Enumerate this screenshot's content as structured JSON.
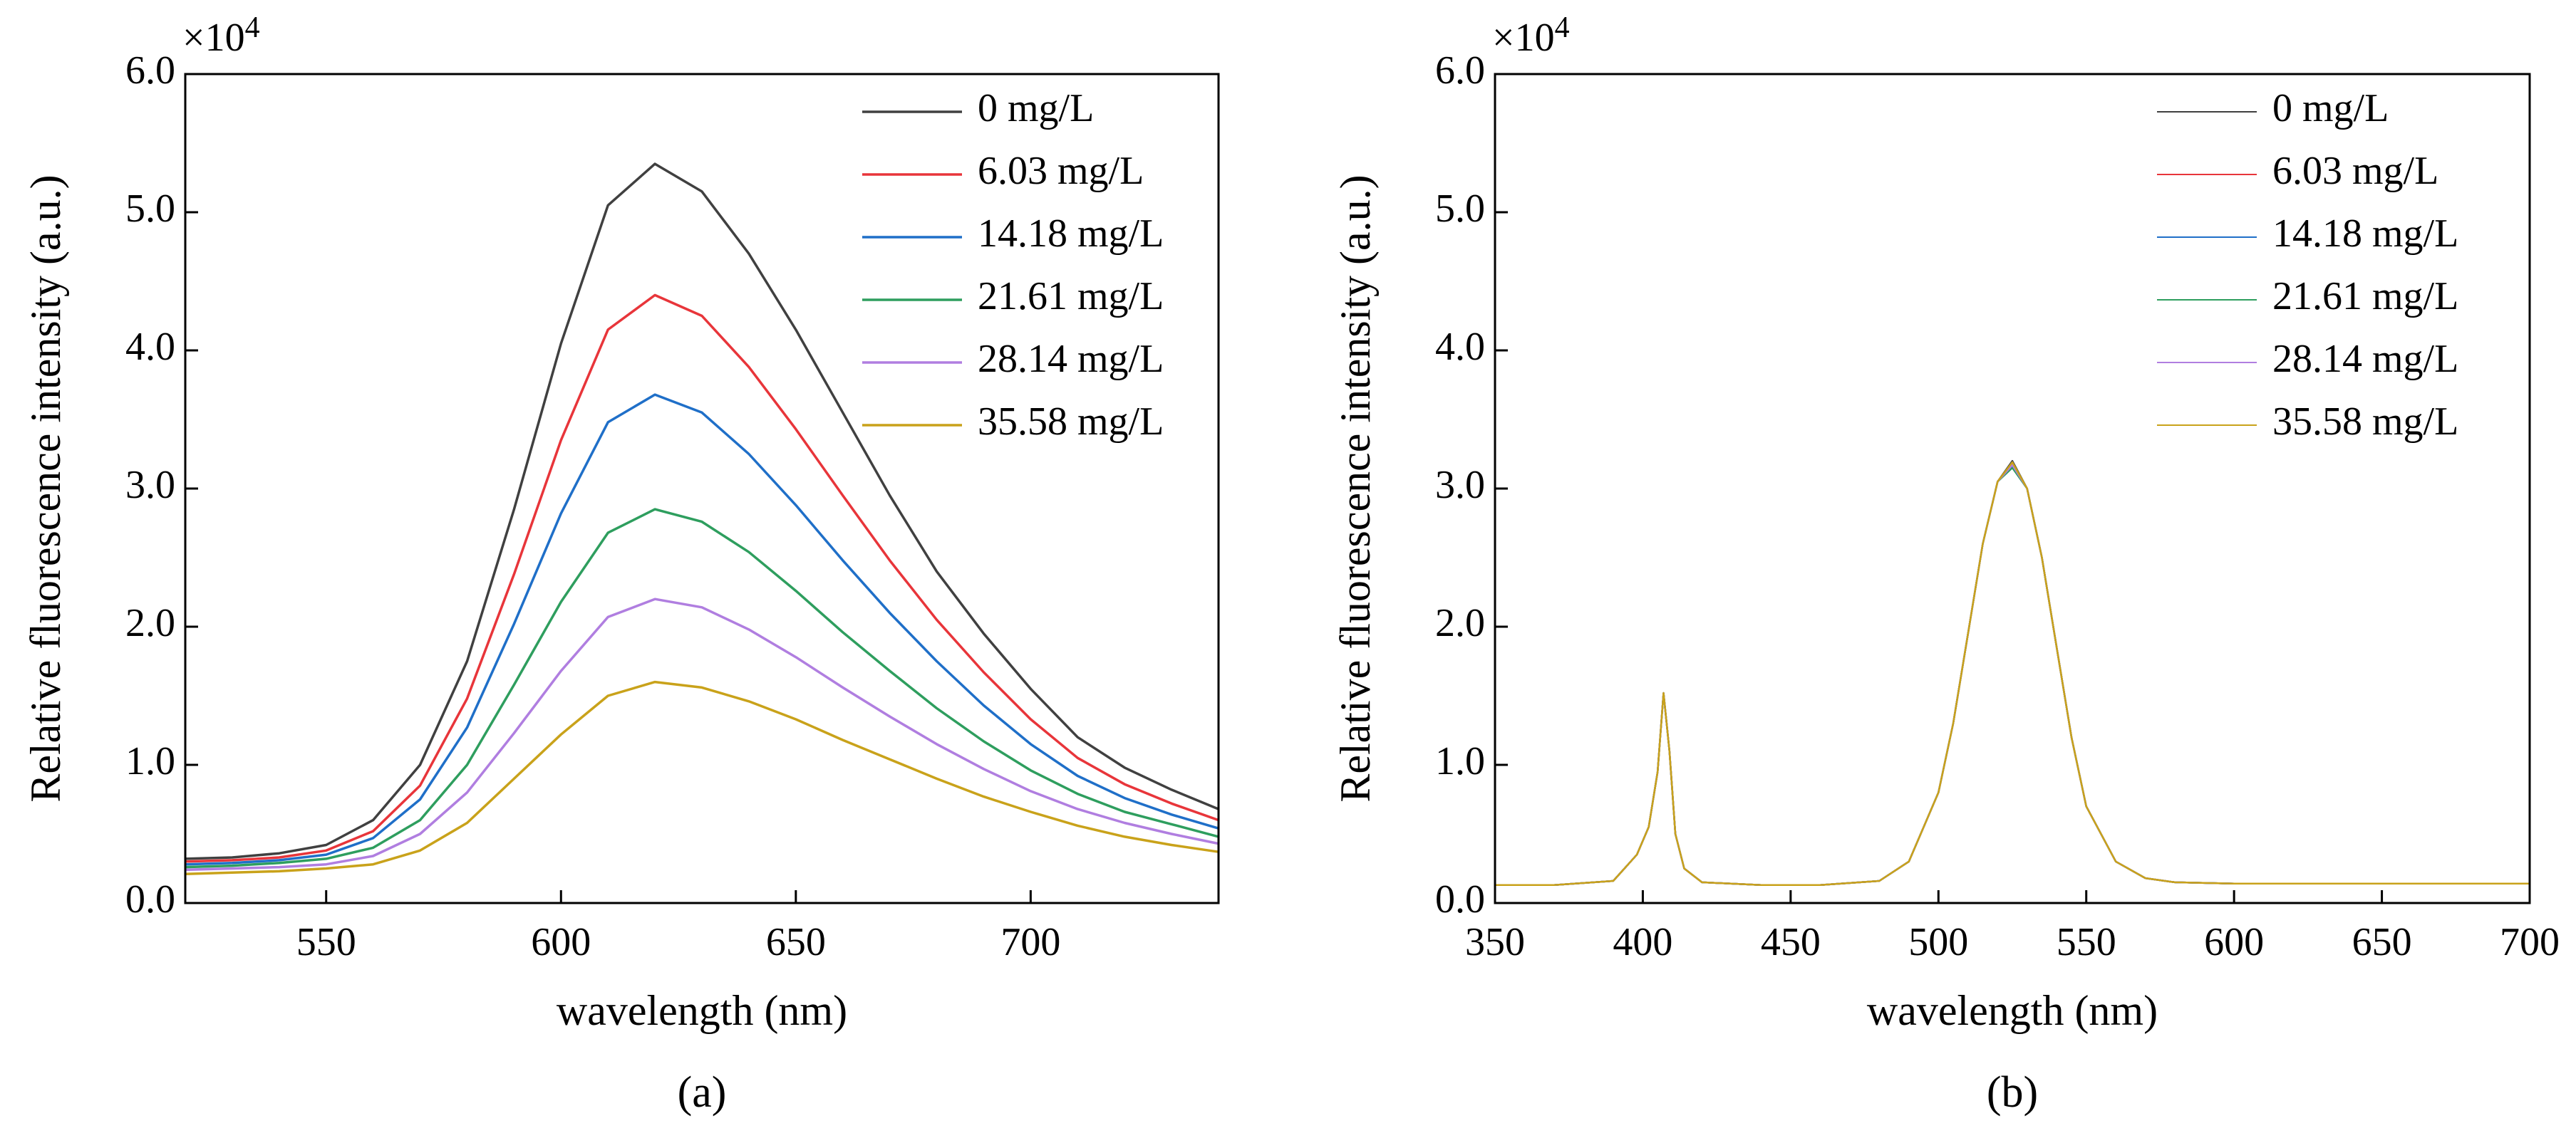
{
  "chart_data": [
    {
      "type": "line",
      "caption": "(a)",
      "xlabel": "wavelength (nm)",
      "ylabel": "Relative fluorescence intensity (a.u.)",
      "y_multiplier": {
        "base": "×10",
        "exponent": "4"
      },
      "xlim": [
        520,
        740
      ],
      "xticks": [
        550,
        600,
        650,
        700
      ],
      "ylim": [
        0,
        6
      ],
      "yticks": [
        {
          "value": 0,
          "label": "0.0"
        },
        {
          "value": 1,
          "label": "1.0"
        },
        {
          "value": 2,
          "label": "2.0"
        },
        {
          "value": 3,
          "label": "3.0"
        },
        {
          "value": 4,
          "label": "4.0"
        },
        {
          "value": 5,
          "label": "5.0"
        },
        {
          "value": 6,
          "label": "6.0"
        }
      ],
      "legend": "upper right",
      "x": [
        520,
        530,
        540,
        550,
        560,
        570,
        580,
        590,
        600,
        610,
        620,
        630,
        640,
        650,
        660,
        670,
        680,
        690,
        700,
        710,
        720,
        730,
        740
      ],
      "series": [
        {
          "name": "0 mg/L",
          "color": "#404040",
          "values": [
            0.32,
            0.33,
            0.36,
            0.42,
            0.6,
            1.0,
            1.75,
            2.85,
            4.05,
            5.05,
            5.35,
            5.15,
            4.7,
            4.15,
            3.55,
            2.95,
            2.4,
            1.95,
            1.55,
            1.2,
            0.98,
            0.82,
            0.68
          ]
        },
        {
          "name": "6.03 mg/L",
          "color": "#e8353a",
          "values": [
            0.3,
            0.31,
            0.33,
            0.38,
            0.52,
            0.85,
            1.48,
            2.38,
            3.35,
            4.15,
            4.4,
            4.25,
            3.88,
            3.43,
            2.95,
            2.48,
            2.05,
            1.67,
            1.33,
            1.05,
            0.86,
            0.72,
            0.6
          ]
        },
        {
          "name": "14.18 mg/L",
          "color": "#1f6fc8",
          "values": [
            0.28,
            0.29,
            0.31,
            0.35,
            0.47,
            0.75,
            1.27,
            2.02,
            2.82,
            3.48,
            3.68,
            3.55,
            3.25,
            2.88,
            2.48,
            2.1,
            1.75,
            1.43,
            1.15,
            0.92,
            0.76,
            0.64,
            0.54
          ]
        },
        {
          "name": "21.61 mg/L",
          "color": "#2e9e5e",
          "values": [
            0.26,
            0.27,
            0.29,
            0.32,
            0.4,
            0.6,
            1.0,
            1.58,
            2.18,
            2.68,
            2.85,
            2.76,
            2.54,
            2.26,
            1.96,
            1.68,
            1.41,
            1.17,
            0.96,
            0.79,
            0.66,
            0.57,
            0.48
          ]
        },
        {
          "name": "28.14 mg/L",
          "color": "#b07ee0",
          "values": [
            0.24,
            0.25,
            0.26,
            0.28,
            0.34,
            0.5,
            0.8,
            1.23,
            1.68,
            2.07,
            2.2,
            2.14,
            1.98,
            1.78,
            1.56,
            1.35,
            1.15,
            0.97,
            0.81,
            0.68,
            0.58,
            0.5,
            0.43
          ]
        },
        {
          "name": "35.58 mg/L",
          "color": "#c9a21a",
          "values": [
            0.21,
            0.22,
            0.23,
            0.25,
            0.28,
            0.38,
            0.58,
            0.9,
            1.22,
            1.5,
            1.6,
            1.56,
            1.46,
            1.33,
            1.18,
            1.04,
            0.9,
            0.77,
            0.66,
            0.56,
            0.48,
            0.42,
            0.37
          ]
        }
      ]
    },
    {
      "type": "line",
      "caption": "(b)",
      "xlabel": "wavelength (nm)",
      "ylabel": "Relative fluorescence intensity (a.u.)",
      "y_multiplier": {
        "base": "×10",
        "exponent": "4"
      },
      "xlim": [
        350,
        700
      ],
      "xticks": [
        350,
        400,
        450,
        500,
        550,
        600,
        650,
        700
      ],
      "ylim": [
        0,
        6
      ],
      "yticks": [
        {
          "value": 0,
          "label": "0.0"
        },
        {
          "value": 1,
          "label": "1.0"
        },
        {
          "value": 2,
          "label": "2.0"
        },
        {
          "value": 3,
          "label": "3.0"
        },
        {
          "value": 4,
          "label": "4.0"
        },
        {
          "value": 5,
          "label": "5.0"
        },
        {
          "value": 6,
          "label": "6.0"
        }
      ],
      "legend": "upper right",
      "x": [
        350,
        370,
        390,
        398,
        402,
        405,
        407,
        409,
        411,
        414,
        420,
        440,
        460,
        480,
        490,
        500,
        505,
        510,
        515,
        520,
        525,
        530,
        535,
        540,
        545,
        550,
        560,
        570,
        580,
        600,
        650,
        700
      ],
      "series": [
        {
          "name": "0 mg/L",
          "color": "#404040",
          "values": [
            0.13,
            0.13,
            0.16,
            0.35,
            0.55,
            0.95,
            1.52,
            1.1,
            0.5,
            0.25,
            0.15,
            0.13,
            0.13,
            0.16,
            0.3,
            0.8,
            1.3,
            1.95,
            2.6,
            3.05,
            3.2,
            3.0,
            2.5,
            1.85,
            1.2,
            0.7,
            0.3,
            0.18,
            0.15,
            0.14,
            0.14,
            0.14
          ]
        },
        {
          "name": "6.03 mg/L",
          "color": "#e8353a",
          "values": [
            0.13,
            0.13,
            0.16,
            0.35,
            0.55,
            0.95,
            1.52,
            1.1,
            0.5,
            0.25,
            0.15,
            0.13,
            0.13,
            0.16,
            0.3,
            0.8,
            1.3,
            1.95,
            2.6,
            3.05,
            3.18,
            3.0,
            2.5,
            1.85,
            1.2,
            0.7,
            0.3,
            0.18,
            0.15,
            0.14,
            0.14,
            0.14
          ]
        },
        {
          "name": "14.18 mg/L",
          "color": "#1f6fc8",
          "values": [
            0.13,
            0.13,
            0.16,
            0.35,
            0.55,
            0.95,
            1.52,
            1.1,
            0.5,
            0.25,
            0.15,
            0.13,
            0.13,
            0.16,
            0.3,
            0.8,
            1.3,
            1.95,
            2.6,
            3.05,
            3.16,
            3.0,
            2.5,
            1.85,
            1.2,
            0.7,
            0.3,
            0.18,
            0.15,
            0.14,
            0.14,
            0.14
          ]
        },
        {
          "name": "21.61 mg/L",
          "color": "#2e9e5e",
          "values": [
            0.13,
            0.13,
            0.16,
            0.35,
            0.55,
            0.95,
            1.52,
            1.1,
            0.5,
            0.25,
            0.15,
            0.13,
            0.13,
            0.16,
            0.3,
            0.8,
            1.3,
            1.95,
            2.6,
            3.05,
            3.15,
            3.0,
            2.5,
            1.85,
            1.2,
            0.7,
            0.3,
            0.18,
            0.15,
            0.14,
            0.14,
            0.14
          ]
        },
        {
          "name": "28.14 mg/L",
          "color": "#b07ee0",
          "values": [
            0.13,
            0.13,
            0.16,
            0.35,
            0.55,
            0.95,
            1.52,
            1.1,
            0.5,
            0.25,
            0.15,
            0.13,
            0.13,
            0.16,
            0.3,
            0.8,
            1.3,
            1.95,
            2.6,
            3.05,
            3.17,
            3.0,
            2.5,
            1.85,
            1.2,
            0.7,
            0.3,
            0.18,
            0.15,
            0.14,
            0.14,
            0.14
          ]
        },
        {
          "name": "35.58 mg/L",
          "color": "#c9a21a",
          "values": [
            0.13,
            0.13,
            0.16,
            0.35,
            0.55,
            0.95,
            1.52,
            1.1,
            0.5,
            0.25,
            0.15,
            0.13,
            0.13,
            0.16,
            0.3,
            0.8,
            1.3,
            1.95,
            2.6,
            3.05,
            3.19,
            3.0,
            2.5,
            1.85,
            1.2,
            0.7,
            0.3,
            0.18,
            0.15,
            0.14,
            0.14,
            0.14
          ]
        }
      ]
    }
  ]
}
